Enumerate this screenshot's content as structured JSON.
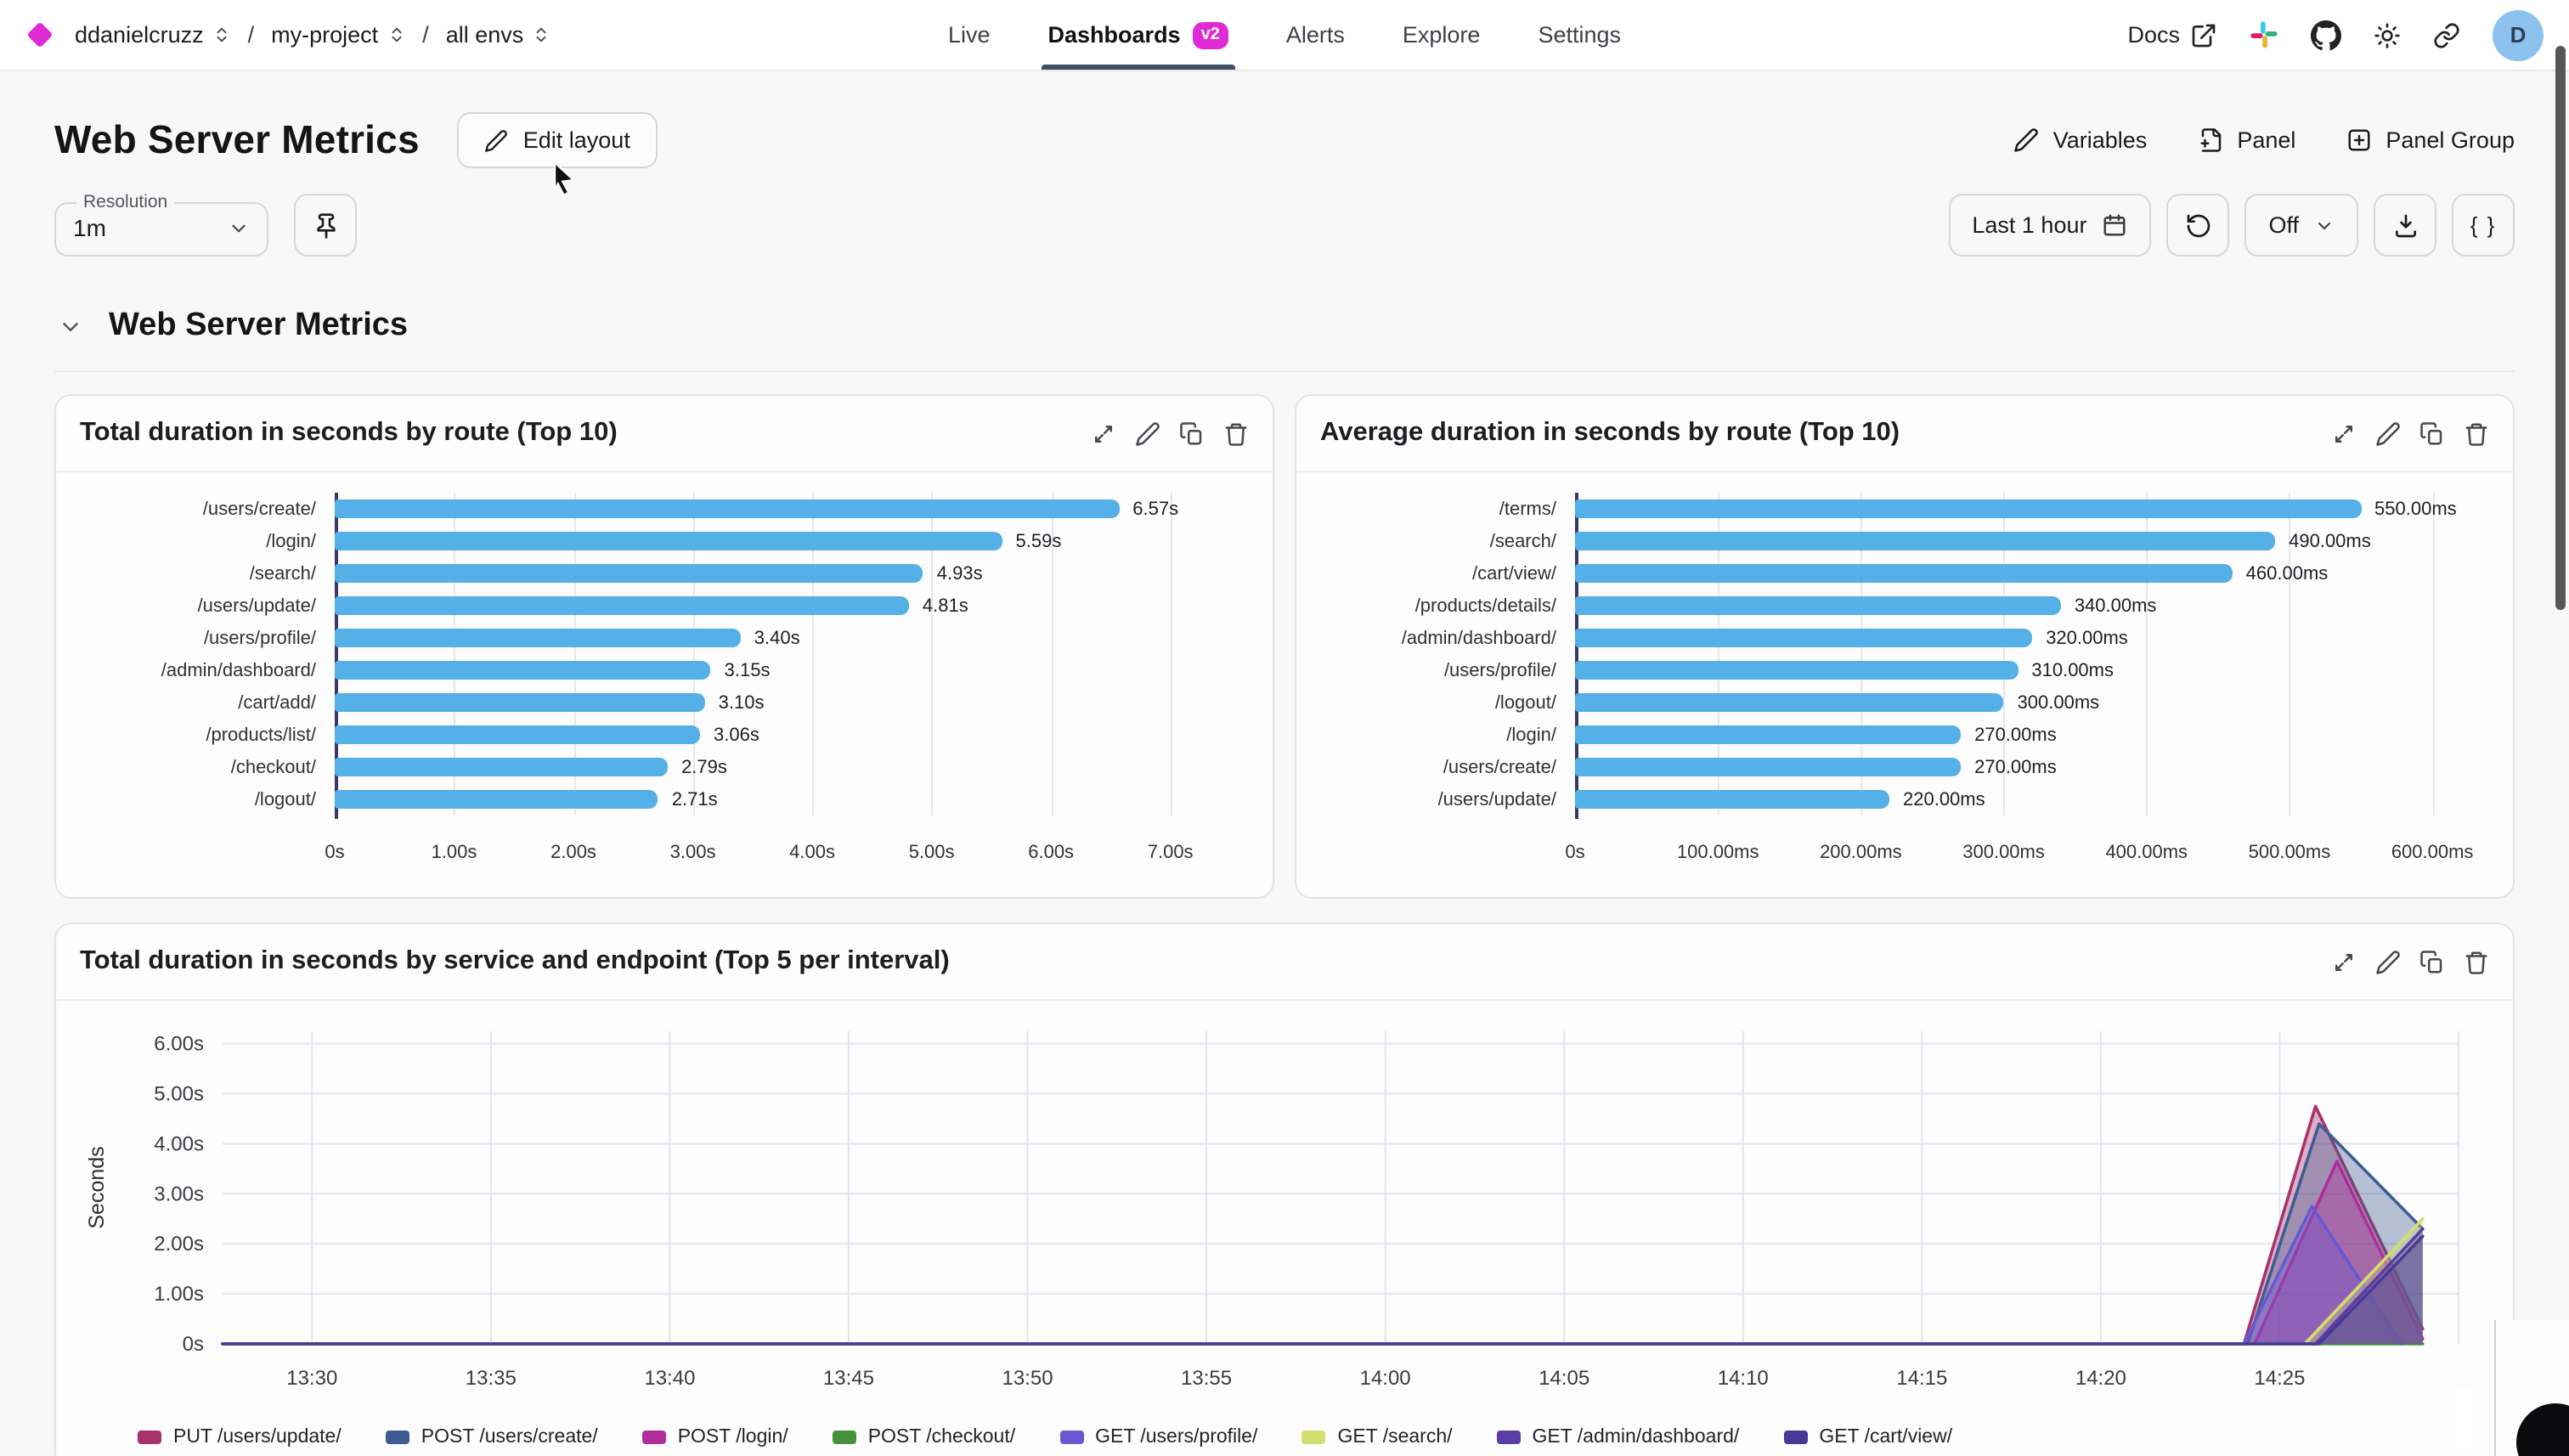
{
  "nav": {
    "breadcrumbs": [
      {
        "label": "ddanielcruzz"
      },
      {
        "label": "my-project"
      },
      {
        "label": "all envs"
      }
    ],
    "separator": "/",
    "tabs": [
      {
        "label": "Live"
      },
      {
        "label": "Dashboards",
        "badge": "v2",
        "active": true
      },
      {
        "label": "Alerts"
      },
      {
        "label": "Explore"
      },
      {
        "label": "Settings"
      }
    ],
    "docs_label": "Docs",
    "avatar_initial": "D"
  },
  "header": {
    "title": "Web Server Metrics",
    "edit_layout_label": "Edit layout",
    "variables_label": "Variables",
    "panel_label": "Panel",
    "panel_group_label": "Panel Group"
  },
  "toolbar": {
    "resolution_label": "Resolution",
    "resolution_value": "1m",
    "time_range_label": "Last 1 hour",
    "auto_refresh_value": "Off",
    "braces_label": "{ }"
  },
  "section": {
    "title": "Web Server Metrics"
  },
  "icons": {
    "brand-logo": "magenta diamond",
    "breadcrumb-selector": "chevrons-up-down",
    "docs": "external-link",
    "community": "slack",
    "repo": "github",
    "theme": "sun",
    "share": "link",
    "edit": "pencil",
    "add-panel": "file-plus",
    "add-panel-group": "plus-square",
    "pin": "pushpin",
    "time-range": "calendar",
    "refresh": "rotate-ccw",
    "download": "download-tray",
    "panel-actions": [
      "expand-diagonal",
      "pencil",
      "copy",
      "trash"
    ]
  },
  "colors": {
    "accent_magenta": "#e02ad6",
    "bar_blue": "#54b0e6",
    "axis_line": "#3a3864",
    "active_tab_underline": "#3d4f63",
    "avatar_bg": "#8ec2ee"
  },
  "chart_data": [
    {
      "type": "bar",
      "orientation": "horizontal",
      "title": "Total duration in seconds by route (Top 10)",
      "unit": "s",
      "categories": [
        "/users/create/",
        "/login/",
        "/search/",
        "/users/update/",
        "/users/profile/",
        "/admin/dashboard/",
        "/cart/add/",
        "/products/list/",
        "/checkout/",
        "/logout/"
      ],
      "values": [
        6.57,
        5.59,
        4.93,
        4.81,
        3.4,
        3.15,
        3.1,
        3.06,
        2.79,
        2.71
      ],
      "value_labels": [
        "6.57s",
        "5.59s",
        "4.93s",
        "4.81s",
        "3.40s",
        "3.15s",
        "3.10s",
        "3.06s",
        "2.79s",
        "2.71s"
      ],
      "xticks": [
        {
          "v": 0,
          "label": "0s"
        },
        {
          "v": 1,
          "label": "1.00s"
        },
        {
          "v": 2,
          "label": "2.00s"
        },
        {
          "v": 3,
          "label": "3.00s"
        },
        {
          "v": 4,
          "label": "4.00s"
        },
        {
          "v": 5,
          "label": "5.00s"
        },
        {
          "v": 6,
          "label": "6.00s"
        },
        {
          "v": 7,
          "label": "7.00s"
        }
      ],
      "axis_max": 7.6,
      "bar_color": "#54b0e6",
      "grid": true
    },
    {
      "type": "bar",
      "orientation": "horizontal",
      "title": "Average duration in seconds by route (Top 10)",
      "unit": "ms",
      "categories": [
        "/terms/",
        "/search/",
        "/cart/view/",
        "/products/details/",
        "/admin/dashboard/",
        "/users/profile/",
        "/logout/",
        "/login/",
        "/users/create/",
        "/users/update/"
      ],
      "values": [
        550,
        490,
        460,
        340,
        320,
        310,
        300,
        270,
        270,
        220
      ],
      "value_labels": [
        "550.00ms",
        "490.00ms",
        "460.00ms",
        "340.00ms",
        "320.00ms",
        "310.00ms",
        "300.00ms",
        "270.00ms",
        "270.00ms",
        "220.00ms"
      ],
      "xticks": [
        {
          "v": 0,
          "label": "0s"
        },
        {
          "v": 100,
          "label": "100.00ms"
        },
        {
          "v": 200,
          "label": "200.00ms"
        },
        {
          "v": 300,
          "label": "300.00ms"
        },
        {
          "v": 400,
          "label": "400.00ms"
        },
        {
          "v": 500,
          "label": "500.00ms"
        },
        {
          "v": 600,
          "label": "600.00ms"
        }
      ],
      "axis_max": 635,
      "bar_color": "#54b0e6",
      "grid": true
    },
    {
      "type": "area",
      "title": "Total duration in seconds by service and endpoint (Top 5 per interval)",
      "ylabel": "Seconds",
      "ylim": [
        0,
        6.25
      ],
      "yticks": [
        {
          "v": 0,
          "label": "0s"
        },
        {
          "v": 1,
          "label": "1.00s"
        },
        {
          "v": 2,
          "label": "2.00s"
        },
        {
          "v": 3,
          "label": "3.00s"
        },
        {
          "v": 4,
          "label": "4.00s"
        },
        {
          "v": 5,
          "label": "5.00s"
        },
        {
          "v": 6,
          "label": "6.00s"
        }
      ],
      "x_unit": "minutes after 13:00",
      "x_range": [
        27.5,
        90
      ],
      "xticks": [
        {
          "t": 30,
          "label": "13:30"
        },
        {
          "t": 35,
          "label": "13:35"
        },
        {
          "t": 40,
          "label": "13:40"
        },
        {
          "t": 45,
          "label": "13:45"
        },
        {
          "t": 50,
          "label": "13:50"
        },
        {
          "t": 55,
          "label": "13:55"
        },
        {
          "t": 60,
          "label": "14:00"
        },
        {
          "t": 65,
          "label": "14:05"
        },
        {
          "t": 70,
          "label": "14:10"
        },
        {
          "t": 75,
          "label": "14:15"
        },
        {
          "t": 80,
          "label": "14:20"
        },
        {
          "t": 85,
          "label": "14:25"
        },
        {
          "t": 90,
          "label": ""
        }
      ],
      "legend_position": "bottom",
      "grid": true,
      "series": [
        {
          "name": "PUT /users/update/",
          "color": "#a8336c",
          "points": [
            [
              27.5,
              0
            ],
            [
              84,
              0
            ],
            [
              86,
              4.75
            ],
            [
              89,
              0.3
            ]
          ]
        },
        {
          "name": "POST /users/create/",
          "color": "#3e5c94",
          "points": [
            [
              27.5,
              0
            ],
            [
              84.1,
              0
            ],
            [
              86.1,
              4.4
            ],
            [
              89,
              2.3
            ]
          ]
        },
        {
          "name": "POST /login/",
          "color": "#b12d9c",
          "points": [
            [
              27.5,
              0
            ],
            [
              84.3,
              0
            ],
            [
              86.6,
              3.65
            ],
            [
              89,
              0.1
            ]
          ]
        },
        {
          "name": "POST /checkout/",
          "color": "#46923c",
          "points": [
            [
              27.5,
              0
            ],
            [
              89,
              0
            ]
          ]
        },
        {
          "name": "GET /users/profile/",
          "color": "#6a57d2",
          "points": [
            [
              27.5,
              0
            ],
            [
              84,
              0
            ],
            [
              85.9,
              2.75
            ],
            [
              88.4,
              0
            ]
          ]
        },
        {
          "name": "GET /search/",
          "color": "#d3de71",
          "points": [
            [
              27.5,
              0
            ],
            [
              85.7,
              0
            ],
            [
              89,
              2.5
            ]
          ]
        },
        {
          "name": "GET /admin/dashboard/",
          "color": "#5a3da6",
          "points": [
            [
              27.5,
              0
            ],
            [
              86,
              0
            ],
            [
              89,
              2.3
            ]
          ]
        },
        {
          "name": "GET /cart/view/",
          "color": "#473a97",
          "points": [
            [
              27.5,
              0
            ],
            [
              86.1,
              0
            ],
            [
              89,
              2.15
            ]
          ]
        }
      ]
    }
  ]
}
